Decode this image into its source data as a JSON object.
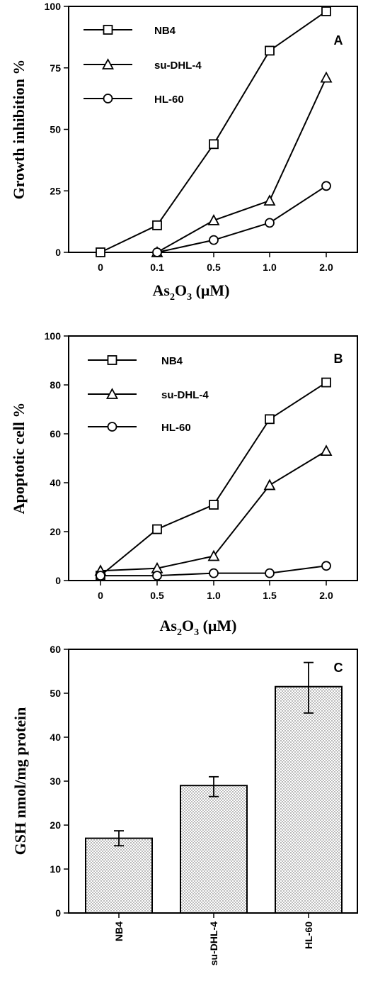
{
  "chart_data": [
    {
      "type": "line",
      "panel_label": "A",
      "ylabel": "Growth inhibition %",
      "xlabel_main": "As",
      "xlabel_sub1": "2",
      "xlabel_mid": "O",
      "xlabel_sub2": "3",
      "xlabel_unit": " (μM)",
      "categories": [
        "0",
        "0.1",
        "0.5",
        "1.0",
        "2.0"
      ],
      "ylim": [
        0,
        100
      ],
      "yticks": [
        "0",
        "25",
        "50",
        "75",
        "100"
      ],
      "ytick_values": [
        0,
        25,
        50,
        75,
        100
      ],
      "legend_position": "top-left",
      "series": [
        {
          "name": "NB4",
          "marker": "square",
          "values": [
            0,
            11,
            44,
            82,
            98
          ]
        },
        {
          "name": "su-DHL-4",
          "marker": "triangle",
          "values": [
            null,
            0,
            13,
            21,
            71
          ]
        },
        {
          "name": "HL-60",
          "marker": "circle",
          "values": [
            null,
            0,
            5,
            12,
            27
          ]
        }
      ]
    },
    {
      "type": "line",
      "panel_label": "B",
      "ylabel": "Apoptotic cell %",
      "xlabel_main": "As",
      "xlabel_sub1": "2",
      "xlabel_mid": "O",
      "xlabel_sub2": "3",
      "xlabel_unit": " (μM)",
      "categories": [
        "0",
        "0.5",
        "1.0",
        "1.5",
        "2.0"
      ],
      "ylim": [
        0,
        100
      ],
      "yticks": [
        "0",
        "20",
        "40",
        "60",
        "80",
        "100"
      ],
      "ytick_values": [
        0,
        20,
        40,
        60,
        80,
        100
      ],
      "legend_position": "top-left",
      "series": [
        {
          "name": "NB4",
          "marker": "square",
          "values": [
            2,
            21,
            31,
            66,
            81
          ]
        },
        {
          "name": "su-DHL-4",
          "marker": "triangle",
          "values": [
            4,
            5,
            10,
            39,
            53
          ]
        },
        {
          "name": "HL-60",
          "marker": "circle",
          "values": [
            2,
            2,
            3,
            3,
            6
          ]
        }
      ]
    },
    {
      "type": "bar",
      "panel_label": "C",
      "ylabel": "GSH nmol/mg protein",
      "categories": [
        "NB4",
        "su-DHL-4",
        "HL-60"
      ],
      "values": [
        17,
        29,
        51.5
      ],
      "error_plus": [
        1.7,
        2.0,
        5.5
      ],
      "error_minus": [
        1.7,
        2.5,
        6.0
      ],
      "ylim": [
        0,
        60
      ],
      "yticks": [
        "0",
        "10",
        "20",
        "30",
        "40",
        "50",
        "60"
      ],
      "ytick_values": [
        0,
        10,
        20,
        30,
        40,
        50,
        60
      ],
      "bar_pattern": "stippled"
    }
  ]
}
